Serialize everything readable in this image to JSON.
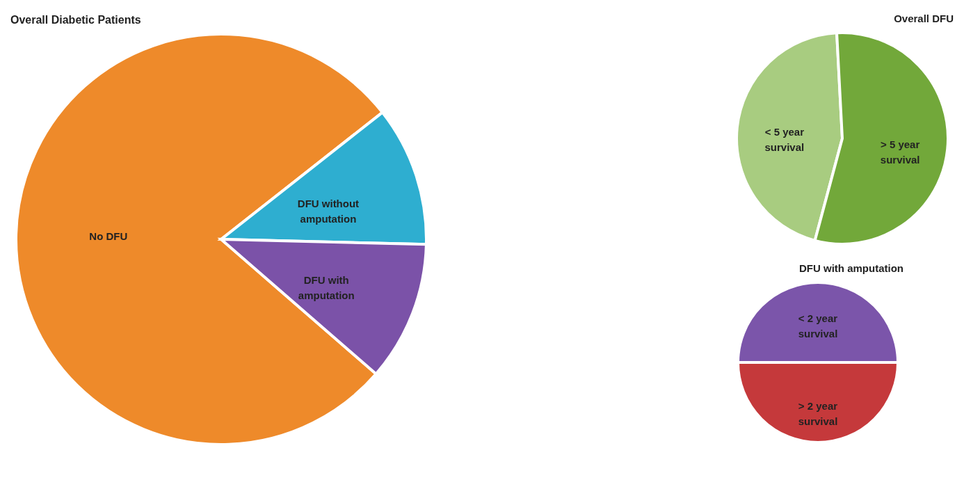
{
  "chart_data": [
    {
      "type": "pie",
      "title": "Overall Diabetic Patients",
      "categories": [
        "No DFU",
        "DFU without amputation",
        "DFU with amputation"
      ],
      "values": [
        78,
        11,
        11
      ],
      "colors": [
        "#ee8a2a",
        "#2eaed0",
        "#7b52a8"
      ]
    },
    {
      "type": "pie",
      "title": "Overall DFU",
      "categories": [
        "< 5 year survival",
        "> 5 year survival"
      ],
      "values": [
        45,
        55
      ],
      "colors": [
        "#a8cc80",
        "#72a83a"
      ]
    },
    {
      "type": "pie",
      "title": "DFU with amputation",
      "categories": [
        "< 2 year survival",
        "> 2 year survival"
      ],
      "values": [
        50,
        50
      ],
      "colors": [
        "#7b55aa",
        "#c5393b"
      ]
    }
  ]
}
